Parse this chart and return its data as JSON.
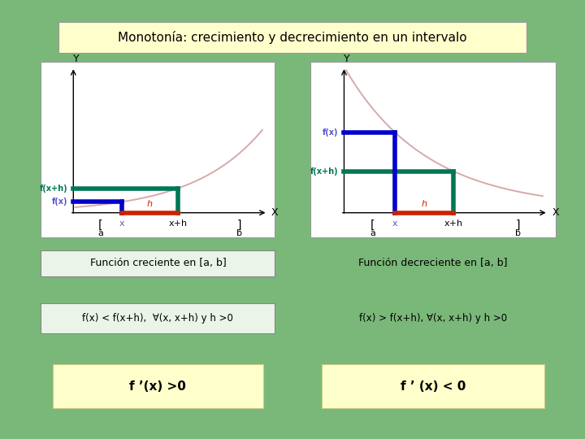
{
  "bg_color": "#7ab87a",
  "title_text": "Monotonía: crecimiento y decrecimiento en un intervalo",
  "title_bg": "#ffffcc",
  "graph_bg": "#ffffff",
  "curve_color": "#d4a0a0",
  "blue_color": "#0000cc",
  "green_color": "#007755",
  "red_color": "#cc2200",
  "label_fx_color": "#5555cc",
  "label_fxh_color": "#007755",
  "subtitle_inc": "Función creciente en [a, b]",
  "subtitle_dec": "Función decreciente en [a, b]",
  "cond_inc": "f(x) < f(x+h),  ∀(x, x+h) y h >0",
  "cond_dec": "f(x) > f(x+h), ∀(x, x+h) y h >0",
  "deriv_inc": "f ’(x) >0",
  "deriv_dec": "f ’ (x) < 0",
  "box_bg": "#ffffcc",
  "panel_border": "#999999"
}
